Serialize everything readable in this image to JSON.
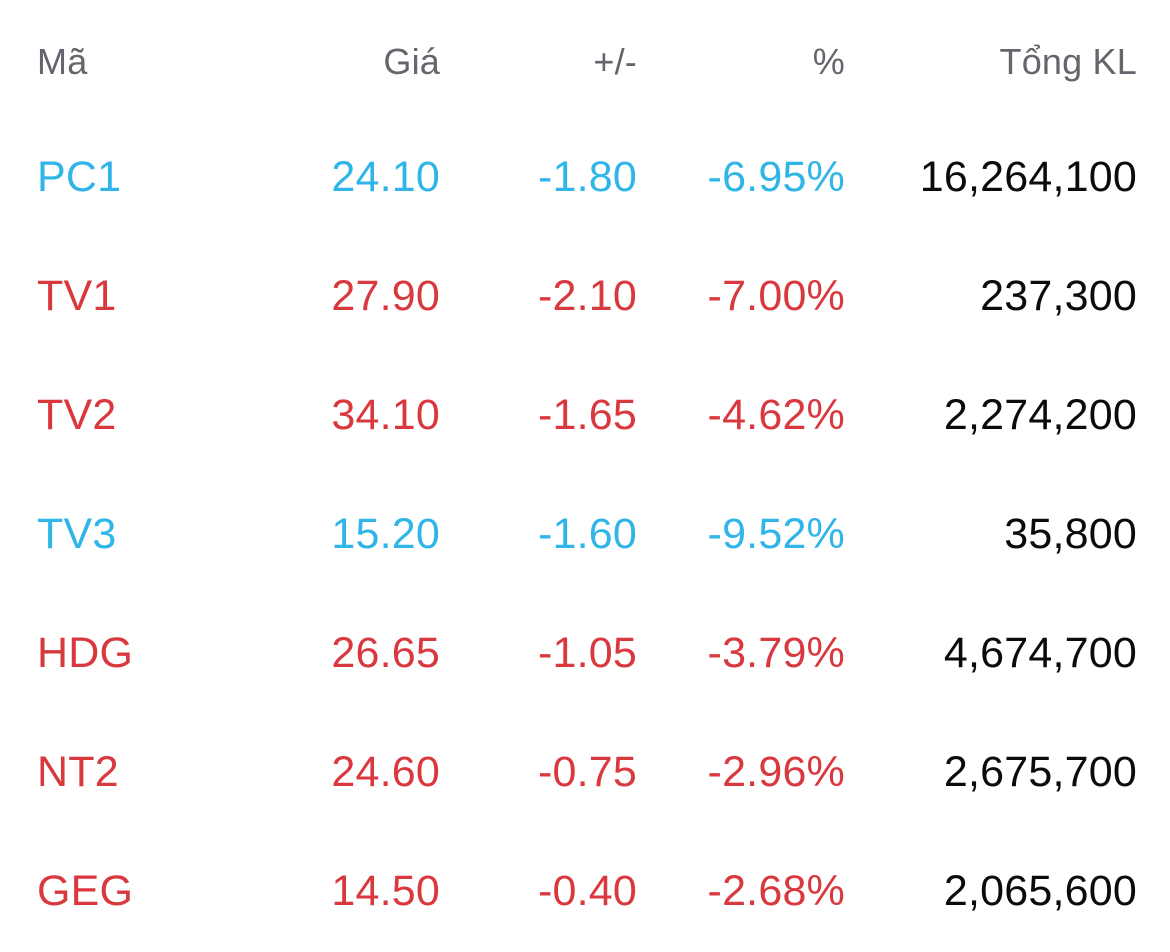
{
  "table": {
    "columns": {
      "symbol": "Mã",
      "price": "Giá",
      "change": "+/-",
      "percent": "%",
      "volume": "Tổng KL"
    },
    "rows": [
      {
        "symbol": "PC1",
        "price": "24.10",
        "change": "-1.80",
        "percent": "-6.95%",
        "volume": "16,264,100",
        "trend": "floor"
      },
      {
        "symbol": "TV1",
        "price": "27.90",
        "change": "-2.10",
        "percent": "-7.00%",
        "volume": "237,300",
        "trend": "down"
      },
      {
        "symbol": "TV2",
        "price": "34.10",
        "change": "-1.65",
        "percent": "-4.62%",
        "volume": "2,274,200",
        "trend": "down"
      },
      {
        "symbol": "TV3",
        "price": "15.20",
        "change": "-1.60",
        "percent": "-9.52%",
        "volume": "35,800",
        "trend": "floor"
      },
      {
        "symbol": "HDG",
        "price": "26.65",
        "change": "-1.05",
        "percent": "-3.79%",
        "volume": "4,674,700",
        "trend": "down"
      },
      {
        "symbol": "NT2",
        "price": "24.60",
        "change": "-0.75",
        "percent": "-2.96%",
        "volume": "2,675,700",
        "trend": "down"
      },
      {
        "symbol": "GEG",
        "price": "14.50",
        "change": "-0.40",
        "percent": "-2.68%",
        "volume": "2,065,600",
        "trend": "down"
      }
    ],
    "colors": {
      "floor": "#2FB5E8",
      "down": "#D8383E",
      "volume_text": "#0b0b0d",
      "header_text": "#63666C",
      "background": "#ffffff"
    }
  }
}
